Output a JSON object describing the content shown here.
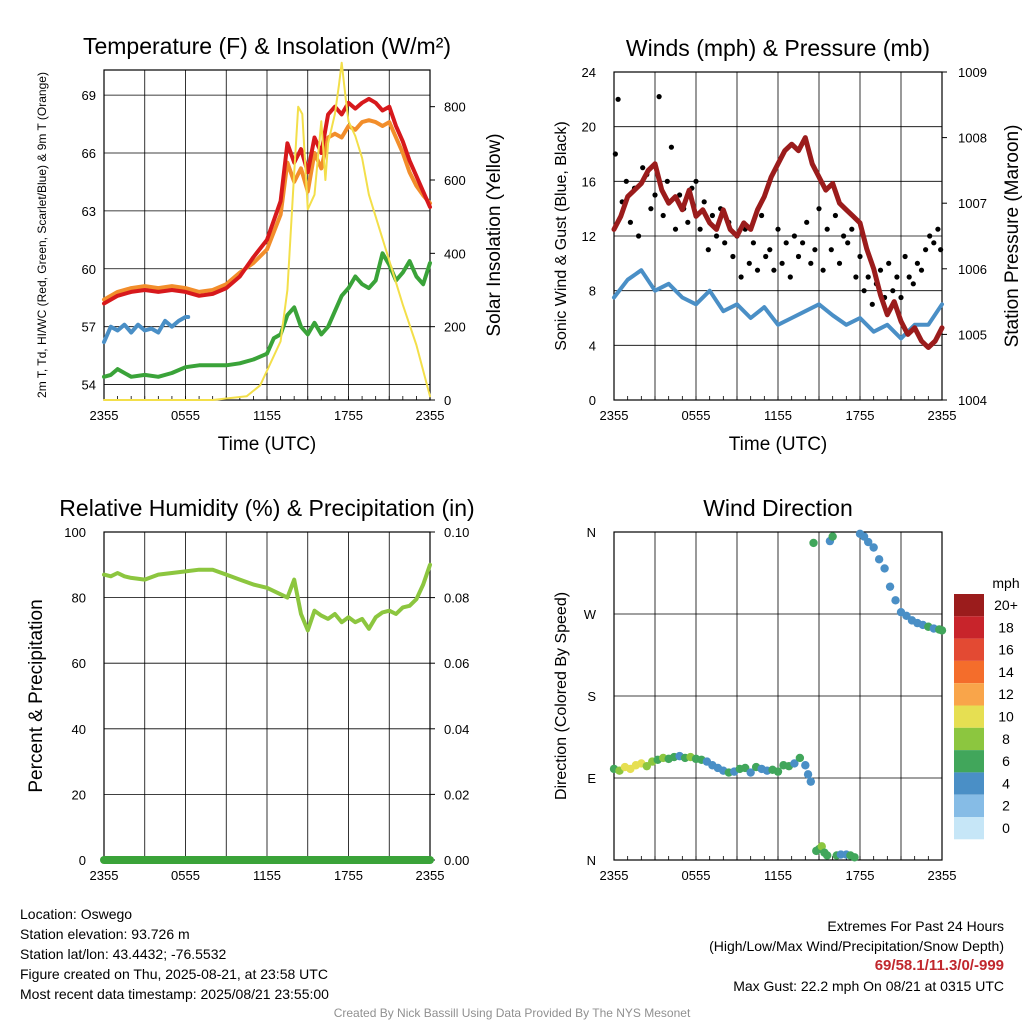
{
  "chart_data": [
    {
      "id": "temp",
      "type": "line",
      "title": "Temperature (F) & Insolation (W/m²)",
      "xlabel": "Time (UTC)",
      "ylabel": "2m T, Td, HI/WC (Red, Green, Scarlet/Blue) & 9m T (Orange)",
      "y2label": "Solar Insolation (Yellow)",
      "x_ticks": [
        "2355",
        "0555",
        "1155",
        "1755",
        "2355"
      ],
      "ylim": [
        53.2,
        70.3
      ],
      "y_ticks": [
        54,
        57,
        60,
        63,
        66,
        69
      ],
      "y2lim": [
        0,
        900
      ],
      "y2_ticks": [
        0,
        200,
        400,
        600,
        800
      ],
      "grid": true,
      "series": [
        {
          "name": "2m T",
          "color": "#d7191c",
          "x": [
            0,
            1,
            2,
            3,
            4,
            5,
            6,
            7,
            8,
            9,
            10,
            11,
            12,
            13,
            13.5,
            14,
            14.5,
            15,
            15.5,
            16,
            16.5,
            17,
            17.5,
            18,
            18.5,
            19,
            19.5,
            20,
            20.5,
            21,
            21.5,
            22,
            22.5,
            23,
            23.5,
            24
          ],
          "values": [
            58.2,
            58.6,
            58.8,
            58.9,
            58.8,
            58.9,
            58.8,
            58.6,
            58.7,
            59.0,
            59.6,
            60.6,
            61.5,
            63.5,
            66.5,
            65.5,
            66.2,
            65.0,
            66.8,
            66.0,
            68.0,
            68.4,
            68.0,
            68.6,
            68.3,
            68.6,
            68.8,
            68.6,
            68.2,
            68.4,
            67.4,
            66.6,
            65.6,
            64.8,
            64.0,
            63.2
          ]
        },
        {
          "name": "9m T",
          "color": "#f28e2b",
          "x": [
            0,
            1,
            2,
            3,
            4,
            5,
            6,
            7,
            8,
            9,
            10,
            11,
            12,
            13,
            13.5,
            14,
            14.5,
            15,
            15.5,
            16,
            16.5,
            17,
            17.5,
            18,
            18.5,
            19,
            19.5,
            20,
            20.5,
            21,
            21.5,
            22,
            22.5,
            23,
            23.5,
            24
          ],
          "values": [
            58.4,
            58.8,
            59.0,
            59.1,
            59.0,
            59.1,
            59.0,
            58.8,
            58.9,
            59.2,
            59.8,
            60.3,
            61.0,
            62.8,
            65.5,
            64.5,
            65.2,
            64.0,
            66.0,
            65.2,
            66.8,
            67.0,
            66.8,
            67.4,
            67.2,
            67.6,
            67.7,
            67.6,
            67.4,
            67.6,
            66.8,
            66.0,
            65.0,
            64.3,
            63.8,
            63.4
          ]
        },
        {
          "name": "Td",
          "color": "#3aa339",
          "x": [
            0,
            0.5,
            1,
            2,
            3,
            4,
            5,
            6,
            7,
            8,
            9,
            10,
            11,
            12,
            12.5,
            13,
            13.5,
            14,
            14.5,
            15,
            15.5,
            16,
            16.5,
            17,
            17.5,
            18,
            18.5,
            19,
            19.5,
            20,
            20.5,
            21,
            21.5,
            22,
            22.5,
            23,
            23.5,
            24
          ],
          "values": [
            54.4,
            54.5,
            54.8,
            54.4,
            54.5,
            54.4,
            54.6,
            54.9,
            55.0,
            55.0,
            55.0,
            55.1,
            55.3,
            55.6,
            56.4,
            56.6,
            57.6,
            58.0,
            57.0,
            56.6,
            57.2,
            56.6,
            57.0,
            57.8,
            58.6,
            59.0,
            59.6,
            59.2,
            59.0,
            59.4,
            60.8,
            60.2,
            59.4,
            59.8,
            60.4,
            59.6,
            59.2,
            60.3
          ]
        },
        {
          "name": "HI/WC",
          "color": "#4a8fc6",
          "x": [
            0,
            0.5,
            1,
            1.5,
            2,
            2.5,
            3,
            3.5,
            4,
            4.5,
            5,
            5.5,
            6,
            6.2
          ],
          "values": [
            56.2,
            57.0,
            56.8,
            57.1,
            56.7,
            57.1,
            56.8,
            56.9,
            56.7,
            57.3,
            57.0,
            57.3,
            57.5,
            57.5
          ]
        },
        {
          "name": "Solar Insolation",
          "color": "#f3df4a",
          "axis": "y2",
          "x": [
            0,
            8,
            10.5,
            11.5,
            12,
            13,
            13.5,
            14,
            14.3,
            14.6,
            15,
            15.5,
            16,
            16.3,
            16.5,
            17,
            17.3,
            17.5,
            17.8,
            18,
            18.5,
            19,
            19.5,
            20,
            21,
            22,
            23,
            24
          ],
          "values": [
            0,
            0,
            10,
            40,
            80,
            160,
            300,
            620,
            800,
            780,
            520,
            560,
            760,
            600,
            700,
            780,
            860,
            920,
            820,
            760,
            720,
            660,
            560,
            500,
            380,
            260,
            150,
            10
          ]
        }
      ]
    },
    {
      "id": "wind",
      "type": "line",
      "title": "Winds (mph) & Pressure (mb)",
      "xlabel": "Time (UTC)",
      "ylabel": "Sonic Wind & Gust (Blue, Black)",
      "y2label": "Station Pressure (Maroon)",
      "x_ticks": [
        "2355",
        "0555",
        "1155",
        "1755",
        "2355"
      ],
      "ylim": [
        0,
        24
      ],
      "y_ticks": [
        0,
        4,
        8,
        12,
        16,
        20,
        24
      ],
      "y2lim": [
        1004,
        1009
      ],
      "y2_ticks": [
        1004,
        1005,
        1006,
        1007,
        1008,
        1009
      ],
      "grid": true,
      "series": [
        {
          "name": "Sonic Wind",
          "color": "#4a8fc6",
          "x": [
            0,
            1,
            2,
            3,
            4,
            5,
            6,
            7,
            8,
            9,
            10,
            11,
            12,
            13,
            14,
            15,
            16,
            17,
            18,
            19,
            20,
            21,
            22,
            23,
            24
          ],
          "values": [
            7.5,
            8.8,
            9.5,
            8.0,
            8.5,
            7.5,
            7.0,
            8.0,
            6.5,
            7.0,
            6.0,
            6.8,
            5.5,
            6.0,
            6.5,
            7.0,
            6.2,
            5.5,
            6.0,
            5.0,
            5.5,
            4.5,
            5.5,
            5.5,
            7.0
          ]
        },
        {
          "name": "Gust",
          "color": "#000000",
          "marker": "dot",
          "x": [
            0.1,
            0.3,
            0.6,
            0.9,
            1.2,
            1.5,
            1.8,
            2.1,
            2.4,
            2.7,
            3.0,
            3.3,
            3.6,
            3.9,
            4.2,
            4.5,
            4.8,
            5.1,
            5.4,
            5.7,
            6.0,
            6.3,
            6.6,
            6.9,
            7.2,
            7.5,
            7.8,
            8.1,
            8.4,
            8.7,
            9.0,
            9.3,
            9.6,
            9.9,
            10.2,
            10.5,
            10.8,
            11.1,
            11.4,
            11.7,
            12.0,
            12.3,
            12.6,
            12.9,
            13.2,
            13.5,
            13.8,
            14.1,
            14.4,
            14.7,
            15.0,
            15.3,
            15.6,
            15.9,
            16.2,
            16.5,
            16.8,
            17.1,
            17.4,
            17.7,
            18.0,
            18.3,
            18.6,
            18.9,
            19.2,
            19.5,
            19.8,
            20.1,
            20.4,
            20.7,
            21.0,
            21.3,
            21.6,
            21.9,
            22.2,
            22.5,
            22.8,
            23.1,
            23.4,
            23.7,
            23.9
          ],
          "values": [
            18.0,
            22.0,
            14.5,
            16.0,
            13.0,
            15.5,
            12.0,
            17.0,
            16.5,
            14.0,
            15.0,
            22.2,
            13.5,
            16.0,
            18.5,
            12.5,
            15.0,
            14.0,
            13.0,
            15.5,
            16.0,
            12.5,
            14.5,
            11.0,
            13.5,
            12.0,
            14.0,
            11.5,
            13.0,
            10.5,
            12.0,
            9.0,
            12.5,
            10.0,
            11.5,
            9.5,
            13.5,
            10.5,
            11.0,
            9.5,
            12.5,
            10.0,
            11.5,
            9.0,
            12.0,
            10.5,
            11.5,
            13.0,
            10.0,
            11.0,
            14.0,
            9.5,
            12.5,
            11.0,
            13.5,
            10.0,
            12.0,
            11.5,
            12.5,
            9.0,
            10.5,
            8.0,
            9.0,
            7.0,
            8.5,
            9.5,
            7.5,
            10.0,
            8.0,
            9.0,
            7.5,
            10.5,
            9.0,
            8.5,
            10.0,
            9.5,
            11.0,
            12.0,
            11.5,
            12.5,
            11.0
          ]
        },
        {
          "name": "Station Pressure",
          "color": "#9b1c1c",
          "axis": "y2",
          "x": [
            0,
            0.5,
            1,
            1.5,
            2,
            2.5,
            3,
            3.5,
            4,
            4.5,
            5,
            5.5,
            6,
            6.5,
            7,
            7.5,
            8,
            8.5,
            9,
            9.5,
            10,
            10.5,
            11,
            11.5,
            12,
            12.5,
            13,
            13.5,
            14,
            14.5,
            15,
            15.5,
            16,
            16.5,
            17,
            17.5,
            18,
            18.5,
            19,
            19.5,
            20,
            20.5,
            21,
            21.5,
            22,
            22.5,
            23,
            23.5,
            24
          ],
          "values": [
            1006.6,
            1006.8,
            1007.1,
            1007.2,
            1007.3,
            1007.5,
            1007.6,
            1007.2,
            1007.0,
            1007.1,
            1006.9,
            1007.2,
            1006.8,
            1006.9,
            1006.7,
            1006.6,
            1006.9,
            1006.6,
            1006.5,
            1006.7,
            1006.6,
            1006.9,
            1007.1,
            1007.4,
            1007.6,
            1007.8,
            1007.9,
            1007.8,
            1008.0,
            1007.6,
            1007.4,
            1007.2,
            1007.3,
            1007.0,
            1006.9,
            1006.8,
            1006.7,
            1006.3,
            1006.0,
            1005.6,
            1005.3,
            1005.5,
            1005.2,
            1005.0,
            1005.1,
            1004.9,
            1004.8,
            1004.9,
            1005.1
          ]
        }
      ]
    },
    {
      "id": "rh",
      "type": "line",
      "title": "Relative Humidity (%) & Precipitation (in)",
      "xlabel": "",
      "ylabel": "Percent & Precipitation",
      "x_ticks": [
        "2355",
        "0555",
        "1155",
        "1755",
        "2355"
      ],
      "ylim": [
        0,
        100
      ],
      "y_ticks": [
        0,
        20,
        40,
        60,
        80,
        100
      ],
      "y2lim": [
        0,
        0.1
      ],
      "y2_ticks": [
        "0.00",
        "0.02",
        "0.04",
        "0.06",
        "0.08",
        "0.10"
      ],
      "grid": true,
      "series": [
        {
          "name": "Relative Humidity",
          "color": "#8cc63f",
          "x": [
            0,
            0.5,
            1,
            1.5,
            2,
            3,
            4,
            5,
            6,
            7,
            8,
            9,
            10,
            11,
            12,
            13,
            13.5,
            14,
            14.5,
            15,
            15.5,
            16,
            16.5,
            17,
            17.5,
            18,
            18.5,
            19,
            19.5,
            20,
            20.5,
            21,
            21.5,
            22,
            22.5,
            23,
            23.5,
            24
          ],
          "values": [
            87.0,
            86.5,
            87.5,
            86.5,
            86.0,
            85.5,
            87.0,
            87.5,
            88.0,
            88.5,
            88.5,
            87.0,
            85.5,
            84.0,
            83.0,
            81.0,
            80.0,
            85.5,
            75.0,
            70.0,
            76.0,
            74.5,
            73.5,
            75.0,
            72.5,
            74.0,
            72.5,
            73.5,
            70.5,
            74.0,
            75.5,
            76.0,
            75.0,
            77.0,
            77.5,
            79.5,
            84.0,
            90.0
          ]
        },
        {
          "name": "Precipitation",
          "color": "#3aa339",
          "axis": "y2",
          "x": [
            0,
            24
          ],
          "values": [
            0,
            0
          ]
        }
      ]
    },
    {
      "id": "dir",
      "type": "scatter",
      "title": "Wind Direction",
      "xlabel": "",
      "ylabel": "Direction (Colored By Speed)",
      "x_ticks": [
        "2355",
        "0555",
        "1155",
        "1755",
        "2355"
      ],
      "y_ticks": [
        "N",
        "E",
        "S",
        "W",
        "N"
      ],
      "ylim": [
        0,
        360
      ],
      "grid": true,
      "legend": {
        "title": "mph",
        "labels": [
          "20+",
          "18",
          "16",
          "14",
          "12",
          "10",
          "8",
          "6",
          "4",
          "2",
          "0"
        ],
        "colors": [
          "#9b1c1c",
          "#c8242b",
          "#e34a33",
          "#f46d2b",
          "#f9a54a",
          "#e6df52",
          "#8cc63f",
          "#41a65b",
          "#4a8fc6",
          "#86bce6",
          "#c6e6f7"
        ],
        "placement": "right"
      },
      "points_x": [
        0,
        0.4,
        0.8,
        1.2,
        1.6,
        2.0,
        2.4,
        2.8,
        3.2,
        3.6,
        4.0,
        4.4,
        4.8,
        5.2,
        5.6,
        6.0,
        6.4,
        6.8,
        7.2,
        7.6,
        8.0,
        8.4,
        8.8,
        9.2,
        9.6,
        10.0,
        10.4,
        10.8,
        11.2,
        11.6,
        12.0,
        12.4,
        12.8,
        13.2,
        13.6,
        14.0,
        14.2,
        14.4,
        14.6,
        14.8,
        15.0,
        15.2,
        15.4,
        15.6,
        15.8,
        16.0,
        16.3,
        16.6,
        17.0,
        17.3,
        17.6,
        18.0,
        18.3,
        18.6,
        19.0,
        19.4,
        19.8,
        20.2,
        20.6,
        21.0,
        21.4,
        21.8,
        22.2,
        22.6,
        23.0,
        23.4,
        23.8,
        24.0
      ],
      "points_y": [
        100,
        98,
        102,
        100,
        104,
        106,
        103,
        108,
        110,
        112,
        111,
        113,
        114,
        112,
        113,
        111,
        110,
        108,
        104,
        101,
        98,
        96,
        97,
        100,
        101,
        96,
        102,
        100,
        98,
        99,
        97,
        104,
        103,
        106,
        112,
        104,
        94,
        86,
        348,
        10,
        12,
        15,
        8,
        5,
        350,
        355,
        5,
        6,
        6,
        5,
        3,
        358,
        355,
        349,
        343,
        330,
        320,
        300,
        285,
        272,
        268,
        263,
        260,
        258,
        256,
        254,
        253,
        252
      ],
      "points_speed": [
        7,
        9,
        11,
        10,
        10,
        11,
        9,
        8,
        7,
        8,
        6,
        7,
        5,
        7,
        8,
        6,
        6,
        5,
        5,
        4,
        5,
        6,
        5,
        7,
        6,
        5,
        6,
        4,
        5,
        7,
        6,
        6,
        7,
        5,
        6,
        4,
        4,
        5,
        6,
        6,
        7,
        8,
        7,
        6,
        5,
        6,
        6,
        5,
        4,
        6,
        6,
        5,
        4,
        4,
        4,
        4,
        4,
        4,
        5,
        4,
        5,
        5,
        5,
        5,
        6,
        5,
        6,
        6
      ]
    }
  ],
  "station": {
    "location": "Location: Oswego",
    "elevation": "Station elevation: 93.726 m",
    "latlon": "Station lat/lon: 43.4432; -76.5532",
    "created": "Figure created on Thu, 2025-08-21, at 23:58 UTC",
    "recent": "Most recent data timestamp: 2025/08/21 23:55:00"
  },
  "extremes": {
    "title": "Extremes For Past 24 Hours",
    "subtitle": "(High/Low/Max Wind/Precipitation/Snow Depth)",
    "values": "69/58.1/11.3/0/-999",
    "max_gust": "Max Gust: 22.2 mph On 08/21 at 0315 UTC"
  },
  "credit": "Created By Nick Bassill Using Data Provided By The NYS Mesonet"
}
